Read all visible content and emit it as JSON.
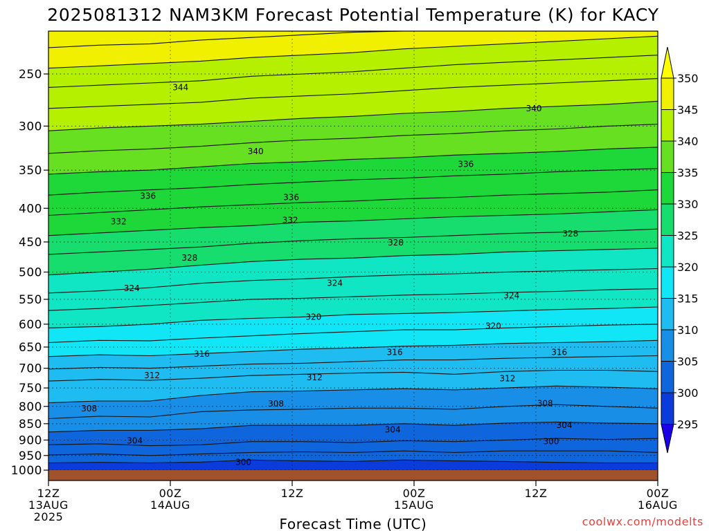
{
  "header": {
    "title": "2025081312 NAM3KM Forecast Potential Temperature (K) for KACY"
  },
  "footer": {
    "credit": "coolwx.com/modelts"
  },
  "chart_data": {
    "type": "heatmap",
    "subtype": "filled-contour time-height cross-section",
    "title": "2025081312 NAM3KM Forecast Potential Temperature (K) for KACY",
    "xlabel": "Forecast Time (UTC)",
    "ylabel": "",
    "x_ticks": [
      {
        "hour": 0,
        "lines": [
          "12Z",
          "13AUG",
          "2025"
        ]
      },
      {
        "hour": 12,
        "lines": [
          "00Z",
          "14AUG"
        ]
      },
      {
        "hour": 24,
        "lines": [
          "12Z"
        ]
      },
      {
        "hour": 36,
        "lines": [
          "00Z",
          "15AUG"
        ]
      },
      {
        "hour": 48,
        "lines": [
          "12Z"
        ]
      },
      {
        "hour": 60,
        "lines": [
          "00Z",
          "16AUG"
        ]
      }
    ],
    "xlim_hours": [
      0,
      60
    ],
    "y_ticks": [
      250,
      300,
      350,
      400,
      450,
      500,
      550,
      600,
      650,
      700,
      750,
      800,
      850,
      900,
      950,
      1000
    ],
    "ylim": [
      1000,
      200
    ],
    "grid": true,
    "colorbar": {
      "levels": [
        295,
        300,
        305,
        310,
        315,
        320,
        325,
        330,
        335,
        340,
        345,
        350
      ],
      "colors": [
        "#1a00e6",
        "#0a3cdc",
        "#0f66dc",
        "#188ee6",
        "#1ebcf0",
        "#10e6f5",
        "#10e6c4",
        "#16dd6e",
        "#1ed83a",
        "#66e020",
        "#b4f000",
        "#f0f000",
        "#ffff00"
      ],
      "extend": "both"
    },
    "contour_interval": 2,
    "contours": [
      {
        "level": 300,
        "p": [
          975,
          973,
          975,
          972,
          965,
          968,
          970,
          965,
          968,
          970,
          973,
          975,
          975
        ]
      },
      {
        "level": 302,
        "p": [
          948,
          945,
          950,
          945,
          940,
          938,
          940,
          935,
          940,
          935,
          935,
          935,
          940
        ]
      },
      {
        "level": 304,
        "p": [
          915,
          912,
          918,
          915,
          905,
          905,
          908,
          902,
          905,
          900,
          895,
          898,
          895
        ]
      },
      {
        "level": 306,
        "p": [
          875,
          870,
          870,
          865,
          855,
          855,
          855,
          850,
          855,
          848,
          845,
          848,
          850
        ]
      },
      {
        "level": 308,
        "p": [
          835,
          828,
          830,
          815,
          810,
          808,
          805,
          805,
          808,
          800,
          795,
          800,
          805
        ]
      },
      {
        "level": 310,
        "p": [
          790,
          785,
          785,
          770,
          760,
          758,
          755,
          752,
          755,
          750,
          745,
          748,
          752
        ]
      },
      {
        "level": 312,
        "p": [
          732,
          728,
          730,
          725,
          718,
          715,
          712,
          710,
          715,
          708,
          705,
          705,
          708
        ]
      },
      {
        "level": 314,
        "p": [
          702,
          698,
          700,
          695,
          690,
          688,
          684,
          680,
          680,
          676,
          674,
          672,
          670
        ]
      },
      {
        "level": 316,
        "p": [
          672,
          668,
          670,
          665,
          660,
          655,
          652,
          648,
          646,
          642,
          640,
          638,
          635
        ]
      },
      {
        "level": 318,
        "p": [
          640,
          635,
          636,
          630,
          625,
          620,
          616,
          612,
          612,
          608,
          605,
          602,
          600
        ]
      },
      {
        "level": 320,
        "p": [
          608,
          605,
          600,
          592,
          588,
          585,
          580,
          578,
          576,
          573,
          570,
          568,
          565
        ]
      },
      {
        "level": 322,
        "p": [
          572,
          568,
          562,
          556,
          550,
          548,
          545,
          542,
          540,
          537,
          535,
          532,
          530
        ]
      },
      {
        "level": 324,
        "p": [
          538,
          534,
          528,
          520,
          515,
          512,
          508,
          505,
          503,
          500,
          498,
          496,
          494
        ]
      },
      {
        "level": 326,
        "p": [
          505,
          500,
          495,
          488,
          482,
          478,
          476,
          472,
          470,
          466,
          464,
          462,
          460
        ]
      },
      {
        "level": 328,
        "p": [
          470,
          466,
          462,
          458,
          452,
          448,
          445,
          443,
          440,
          437,
          435,
          433,
          430
        ]
      },
      {
        "level": 330,
        "p": [
          440,
          436,
          432,
          428,
          425,
          420,
          418,
          415,
          412,
          410,
          408,
          405,
          402
        ]
      },
      {
        "level": 332,
        "p": [
          410,
          406,
          402,
          398,
          395,
          392,
          390,
          387,
          385,
          382,
          380,
          378,
          375
        ]
      },
      {
        "level": 334,
        "p": [
          382,
          378,
          375,
          372,
          368,
          365,
          362,
          360,
          357,
          355,
          352,
          350,
          348
        ]
      },
      {
        "level": 336,
        "p": [
          355,
          352,
          350,
          346,
          342,
          340,
          337,
          335,
          332,
          330,
          328,
          325,
          323
        ]
      },
      {
        "level": 338,
        "p": [
          330,
          327,
          325,
          322,
          318,
          315,
          313,
          310,
          308,
          305,
          303,
          300,
          298
        ]
      },
      {
        "level": 340,
        "p": [
          305,
          302,
          300,
          298,
          295,
          292,
          290,
          287,
          285,
          282,
          280,
          278,
          275
        ]
      },
      {
        "level": 342,
        "p": [
          282,
          280,
          278,
          276,
          272,
          270,
          268,
          265,
          262,
          260,
          258,
          256,
          254
        ]
      },
      {
        "level": 344,
        "p": [
          262,
          260,
          258,
          256,
          252,
          250,
          248,
          245,
          242,
          240,
          238,
          236,
          234
        ]
      },
      {
        "level": 346,
        "p": [
          245,
          243,
          241,
          239,
          236,
          234,
          232,
          229,
          227,
          225,
          223,
          221,
          219
        ]
      },
      {
        "level": 348,
        "p": [
          228,
          226,
          225,
          222,
          220,
          218,
          216,
          214,
          212,
          210,
          208,
          206,
          204
        ]
      }
    ],
    "contour_labels": [
      {
        "text": "344",
        "hour": 13.0,
        "p": 262
      },
      {
        "text": "340",
        "hour": 20.4,
        "p": 328
      },
      {
        "text": "340",
        "hour": 47.8,
        "p": 282
      },
      {
        "text": "336",
        "hour": 9.8,
        "p": 383
      },
      {
        "text": "336",
        "hour": 23.9,
        "p": 385
      },
      {
        "text": "336",
        "hour": 41.1,
        "p": 343
      },
      {
        "text": "332",
        "hour": 6.9,
        "p": 419
      },
      {
        "text": "332",
        "hour": 23.8,
        "p": 417
      },
      {
        "text": "328",
        "hour": 13.9,
        "p": 476
      },
      {
        "text": "328",
        "hour": 34.2,
        "p": 451
      },
      {
        "text": "328",
        "hour": 51.4,
        "p": 437
      },
      {
        "text": "324",
        "hour": 8.2,
        "p": 529
      },
      {
        "text": "324",
        "hour": 28.2,
        "p": 520
      },
      {
        "text": "324",
        "hour": 45.6,
        "p": 543
      },
      {
        "text": "320",
        "hour": 26.1,
        "p": 585
      },
      {
        "text": "320",
        "hour": 43.8,
        "p": 604
      },
      {
        "text": "316",
        "hour": 15.1,
        "p": 666
      },
      {
        "text": "316",
        "hour": 34.1,
        "p": 662
      },
      {
        "text": "316",
        "hour": 50.3,
        "p": 662
      },
      {
        "text": "312",
        "hour": 10.2,
        "p": 718
      },
      {
        "text": "312",
        "hour": 26.2,
        "p": 723
      },
      {
        "text": "312",
        "hour": 45.2,
        "p": 726
      },
      {
        "text": "308",
        "hour": 4.0,
        "p": 806
      },
      {
        "text": "308",
        "hour": 22.4,
        "p": 793
      },
      {
        "text": "308",
        "hour": 48.9,
        "p": 792
      },
      {
        "text": "304",
        "hour": 8.5,
        "p": 902
      },
      {
        "text": "304",
        "hour": 33.9,
        "p": 868
      },
      {
        "text": "304",
        "hour": 50.8,
        "p": 855
      },
      {
        "text": "300",
        "hour": 19.2,
        "p": 972
      },
      {
        "text": "300",
        "hour": 49.5,
        "p": 905
      }
    ]
  }
}
